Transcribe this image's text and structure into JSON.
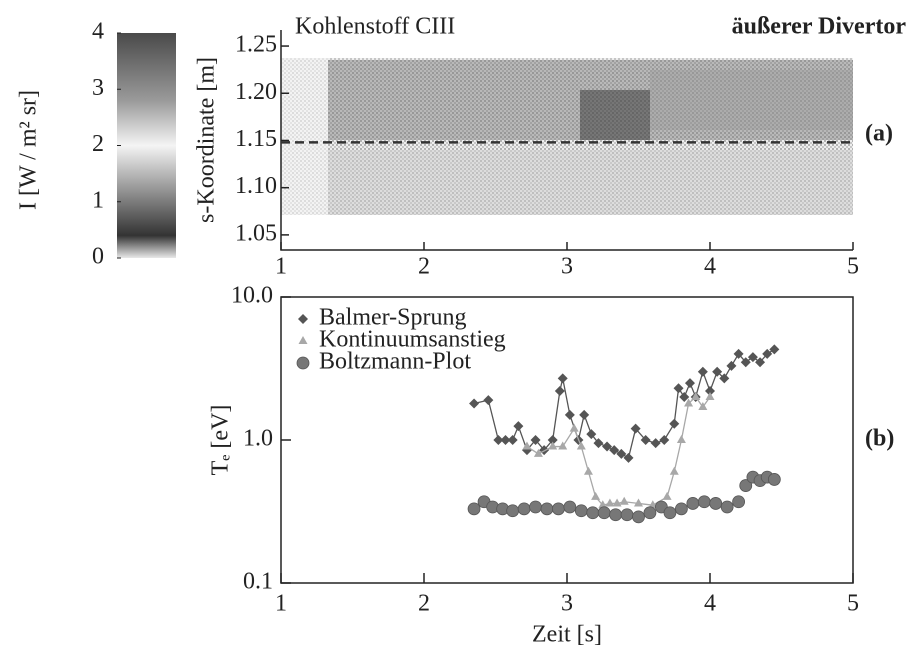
{
  "chart_data": [
    {
      "type": "image",
      "title": "Kohlenstoff CIII",
      "subtitle": "äußerer Divertor",
      "panel_label": "(a)",
      "ylabel": "s-Koordinate [m]",
      "xlim": [
        1,
        5
      ],
      "xticks": [
        1,
        2,
        3,
        4,
        5
      ],
      "ylim": [
        1.034,
        1.267
      ],
      "yticks": [
        1.05,
        {
          "value": 1.1,
          "label": "1.10"
        },
        1.15,
        {
          "value": 1.2,
          "label": "1.20"
        },
        1.25
      ],
      "dashed_line": 1.148,
      "colorbar": {
        "label": "I [W / m² sr]",
        "clim": [
          0,
          4
        ],
        "ticks": [
          0,
          1,
          2,
          3,
          4
        ]
      }
    },
    {
      "type": "line",
      "panel_label": "(b)",
      "xlabel": "Zeit [s]",
      "ylabel": "Tₑ [eV]",
      "log_y": true,
      "legend": "upper-left",
      "xlim": [
        1,
        5
      ],
      "xticks": [
        1,
        2,
        3,
        4,
        5
      ],
      "ylim": [
        0.1,
        10
      ],
      "yticks": [
        {
          "value": 0.1,
          "label": "0.1"
        },
        {
          "value": 1,
          "label": "1.0"
        },
        {
          "value": 10,
          "label": "10.0"
        }
      ],
      "series": [
        {
          "name": "Balmer-Sprung",
          "color": "#555555",
          "marker": "diamond",
          "x": [
            2.35,
            2.45,
            2.52,
            2.57,
            2.62,
            2.66,
            2.72,
            2.78,
            2.84,
            2.9,
            2.95,
            2.97,
            3.02,
            3.08,
            3.12,
            3.17,
            3.22,
            3.28,
            3.33,
            3.38,
            3.43,
            3.48,
            3.55,
            3.62,
            3.68,
            3.75,
            3.78,
            3.82,
            3.86,
            3.9,
            3.95,
            4.0,
            4.05,
            4.1,
            4.15,
            4.2,
            4.25,
            4.3,
            4.35,
            4.4,
            4.45
          ],
          "values": [
            1.8,
            1.9,
            1.0,
            1.0,
            1.0,
            1.25,
            0.85,
            1.0,
            0.85,
            1.0,
            2.2,
            2.7,
            1.5,
            1.0,
            1.5,
            1.1,
            0.95,
            0.9,
            0.85,
            0.8,
            0.75,
            1.2,
            1.0,
            0.95,
            1.0,
            1.3,
            2.3,
            2.0,
            2.5,
            2.0,
            3.0,
            2.2,
            3.0,
            2.7,
            3.3,
            4.0,
            3.5,
            3.8,
            3.5,
            4.0,
            4.3
          ]
        },
        {
          "name": "Kontinuumsanstieg",
          "color": "#a8a8a8",
          "marker": "triangle",
          "x": [
            2.72,
            2.8,
            2.9,
            2.97,
            3.05,
            3.1,
            3.15,
            3.2,
            3.25,
            3.3,
            3.35,
            3.4,
            3.5,
            3.6,
            3.7,
            3.75,
            3.8,
            3.85,
            3.9,
            3.95,
            4.0
          ],
          "values": [
            0.9,
            0.8,
            0.9,
            0.9,
            1.2,
            0.9,
            0.6,
            0.4,
            0.35,
            0.36,
            0.36,
            0.37,
            0.36,
            0.35,
            0.4,
            0.6,
            1.0,
            1.8,
            2.0,
            1.7,
            2.0
          ]
        },
        {
          "name": "Boltzmann-Plot",
          "color": "#777777",
          "marker": "circle",
          "x": [
            2.35,
            2.42,
            2.48,
            2.55,
            2.62,
            2.7,
            2.78,
            2.86,
            2.94,
            3.02,
            3.1,
            3.18,
            3.26,
            3.34,
            3.42,
            3.5,
            3.58,
            3.66,
            3.72,
            3.8,
            3.88,
            3.96,
            4.04,
            4.12,
            4.2,
            4.25,
            4.3,
            4.35,
            4.4,
            4.45
          ],
          "values": [
            0.33,
            0.37,
            0.34,
            0.33,
            0.32,
            0.33,
            0.34,
            0.33,
            0.33,
            0.34,
            0.32,
            0.31,
            0.31,
            0.3,
            0.3,
            0.29,
            0.31,
            0.34,
            0.31,
            0.33,
            0.36,
            0.37,
            0.36,
            0.34,
            0.37,
            0.48,
            0.55,
            0.52,
            0.55,
            0.53
          ]
        }
      ]
    }
  ]
}
